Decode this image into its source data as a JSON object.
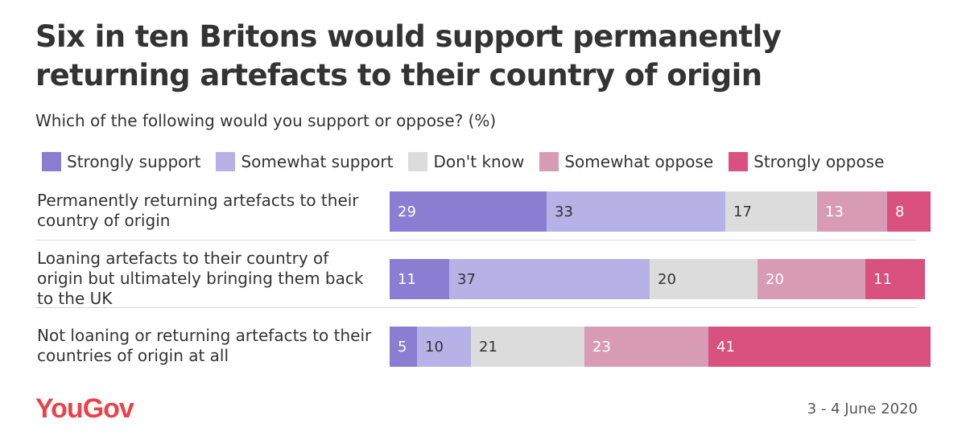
{
  "header": {
    "title": "Six in ten Britons would support permanently returning artefacts to their country of origin",
    "subtitle": "Which of the following would you support or oppose? (%)"
  },
  "footer": {
    "logo": "YouGov",
    "date": "3 - 4 June 2020"
  },
  "chart_data": {
    "type": "bar",
    "orientation": "horizontal",
    "stacked": true,
    "legend_position": "top",
    "grid": false,
    "categories": [
      "Permanently returning artefacts to their country of origin",
      "Loaning artefacts to their country of origin but ultimately bringing them back to the UK",
      "Not loaning or returning artefacts to their countries of origin at all"
    ],
    "series": [
      {
        "name": "Strongly support",
        "color": "#8a7dd2",
        "label_color": "#ffffff",
        "values": [
          29,
          11,
          5
        ]
      },
      {
        "name": "Somewhat support",
        "color": "#b8b1e5",
        "label_color": "#333333",
        "values": [
          33,
          37,
          10
        ]
      },
      {
        "name": "Don't know",
        "color": "#dcdcdc",
        "label_color": "#333333",
        "values": [
          17,
          20,
          21
        ]
      },
      {
        "name": "Somewhat oppose",
        "color": "#d79cb4",
        "label_color": "#ffffff",
        "values": [
          13,
          20,
          23
        ]
      },
      {
        "name": "Strongly oppose",
        "color": "#d9517e",
        "label_color": "#ffffff",
        "values": [
          8,
          11,
          41
        ]
      }
    ]
  }
}
